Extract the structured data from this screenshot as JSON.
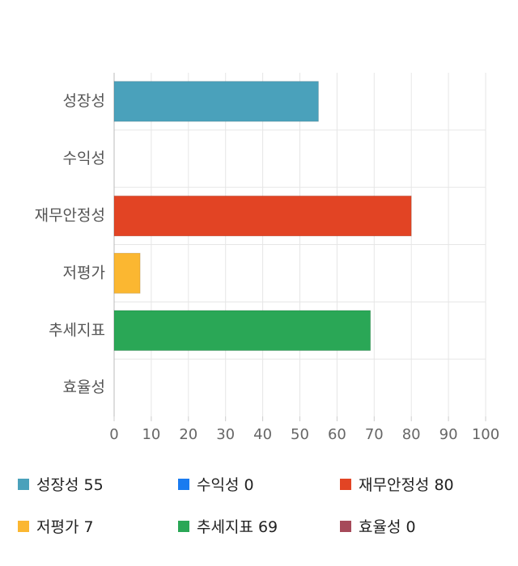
{
  "chart_data": {
    "type": "bar",
    "orientation": "horizontal",
    "categories": [
      "성장성",
      "수익성",
      "재무안정성",
      "저평가",
      "추세지표",
      "효율성"
    ],
    "values": [
      55,
      0,
      80,
      7,
      69,
      0
    ],
    "colors": [
      "#4aa1bb",
      "#1a7bf0",
      "#e24424",
      "#fbb731",
      "#2aa756",
      "#a64a5a"
    ],
    "xlim": [
      0,
      100
    ],
    "xticks": [
      "0",
      "10",
      "20",
      "30",
      "40",
      "50",
      "60",
      "70",
      "80",
      "90",
      "100"
    ],
    "grid": true,
    "legend_position": "bottom"
  },
  "legend": [
    {
      "label": "성장성 55",
      "color": "#4aa1bb"
    },
    {
      "label": "수익성 0",
      "color": "#1a7bf0"
    },
    {
      "label": "재무안정성 80",
      "color": "#e24424"
    },
    {
      "label": "저평가 7",
      "color": "#fbb731"
    },
    {
      "label": "추세지표 69",
      "color": "#2aa756"
    },
    {
      "label": "효율성 0",
      "color": "#a64a5a"
    }
  ]
}
